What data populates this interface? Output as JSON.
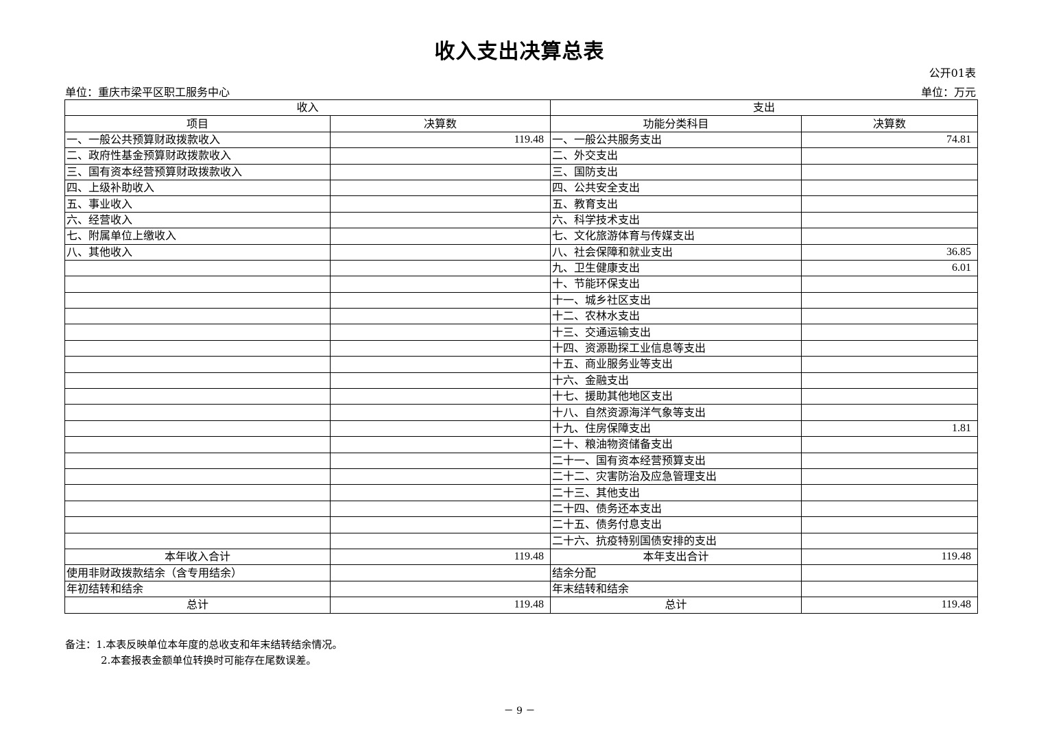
{
  "title": "收入支出决算总表",
  "form_no": "公开01表",
  "unit_org": "单位：重庆市梁平区职工服务中心",
  "unit_currency": "单位：万元",
  "header": {
    "income": "收入",
    "expense": "支出",
    "income_item": "项目",
    "income_amount": "决算数",
    "expense_item": "功能分类科目",
    "expense_amount": "决算数"
  },
  "rows": [
    {
      "income": "一、一般公共预算财政拨款收入",
      "income_value": "119.48",
      "expense": "一、一般公共服务支出",
      "expense_value": "74.81"
    },
    {
      "income": "二、政府性基金预算财政拨款收入",
      "income_value": "",
      "expense": "二、外交支出",
      "expense_value": ""
    },
    {
      "income": "三、国有资本经营预算财政拨款收入",
      "income_value": "",
      "expense": "三、国防支出",
      "expense_value": ""
    },
    {
      "income": "四、上级补助收入",
      "income_value": "",
      "expense": "四、公共安全支出",
      "expense_value": ""
    },
    {
      "income": "五、事业收入",
      "income_value": "",
      "expense": "五、教育支出",
      "expense_value": ""
    },
    {
      "income": "六、经营收入",
      "income_value": "",
      "expense": "六、科学技术支出",
      "expense_value": ""
    },
    {
      "income": "七、附属单位上缴收入",
      "income_value": "",
      "expense": "七、文化旅游体育与传媒支出",
      "expense_value": ""
    },
    {
      "income": "八、其他收入",
      "income_value": "",
      "expense": "八、社会保障和就业支出",
      "expense_value": "36.85"
    },
    {
      "income": "",
      "income_value": "",
      "expense": "九、卫生健康支出",
      "expense_value": "6.01"
    },
    {
      "income": "",
      "income_value": "",
      "expense": "十、节能环保支出",
      "expense_value": ""
    },
    {
      "income": "",
      "income_value": "",
      "expense": "十一、城乡社区支出",
      "expense_value": ""
    },
    {
      "income": "",
      "income_value": "",
      "expense": "十二、农林水支出",
      "expense_value": ""
    },
    {
      "income": "",
      "income_value": "",
      "expense": "十三、交通运输支出",
      "expense_value": ""
    },
    {
      "income": "",
      "income_value": "",
      "expense": "十四、资源勘探工业信息等支出",
      "expense_value": ""
    },
    {
      "income": "",
      "income_value": "",
      "expense": "十五、商业服务业等支出",
      "expense_value": ""
    },
    {
      "income": "",
      "income_value": "",
      "expense": "十六、金融支出",
      "expense_value": ""
    },
    {
      "income": "",
      "income_value": "",
      "expense": "十七、援助其他地区支出",
      "expense_value": ""
    },
    {
      "income": "",
      "income_value": "",
      "expense": "十八、自然资源海洋气象等支出",
      "expense_value": ""
    },
    {
      "income": "",
      "income_value": "",
      "expense": "十九、住房保障支出",
      "expense_value": "1.81"
    },
    {
      "income": "",
      "income_value": "",
      "expense": "二十、粮油物资储备支出",
      "expense_value": ""
    },
    {
      "income": "",
      "income_value": "",
      "expense": "二十一、国有资本经营预算支出",
      "expense_value": ""
    },
    {
      "income": "",
      "income_value": "",
      "expense": "二十二、灾害防治及应急管理支出",
      "expense_value": ""
    },
    {
      "income": "",
      "income_value": "",
      "expense": "二十三、其他支出",
      "expense_value": ""
    },
    {
      "income": "",
      "income_value": "",
      "expense": "二十四、债务还本支出",
      "expense_value": ""
    },
    {
      "income": "",
      "income_value": "",
      "expense": "二十五、债务付息支出",
      "expense_value": ""
    },
    {
      "income": "",
      "income_value": "",
      "expense": "二十六、抗疫特别国债安排的支出",
      "expense_value": ""
    }
  ],
  "footer_rows": [
    {
      "income": "本年收入合计",
      "income_value": "119.48",
      "expense": "本年支出合计",
      "expense_value": "119.48",
      "center": true
    },
    {
      "income": "使用非财政拨款结余（含专用结余）",
      "income_value": "",
      "expense": "结余分配",
      "expense_value": "",
      "center": false
    },
    {
      "income": "年初结转和结余",
      "income_value": "",
      "expense": "年末结转和结余",
      "expense_value": "",
      "center": false
    },
    {
      "income": "总计",
      "income_value": "119.48",
      "expense": "总计",
      "expense_value": "119.48",
      "center": true
    }
  ],
  "notes": [
    "备注：1.本表反映单位本年度的总收支和年末结转结余情况。",
    "2.本套报表金额单位转换时可能存在尾数误差。"
  ],
  "page_number": "－ 9 －"
}
